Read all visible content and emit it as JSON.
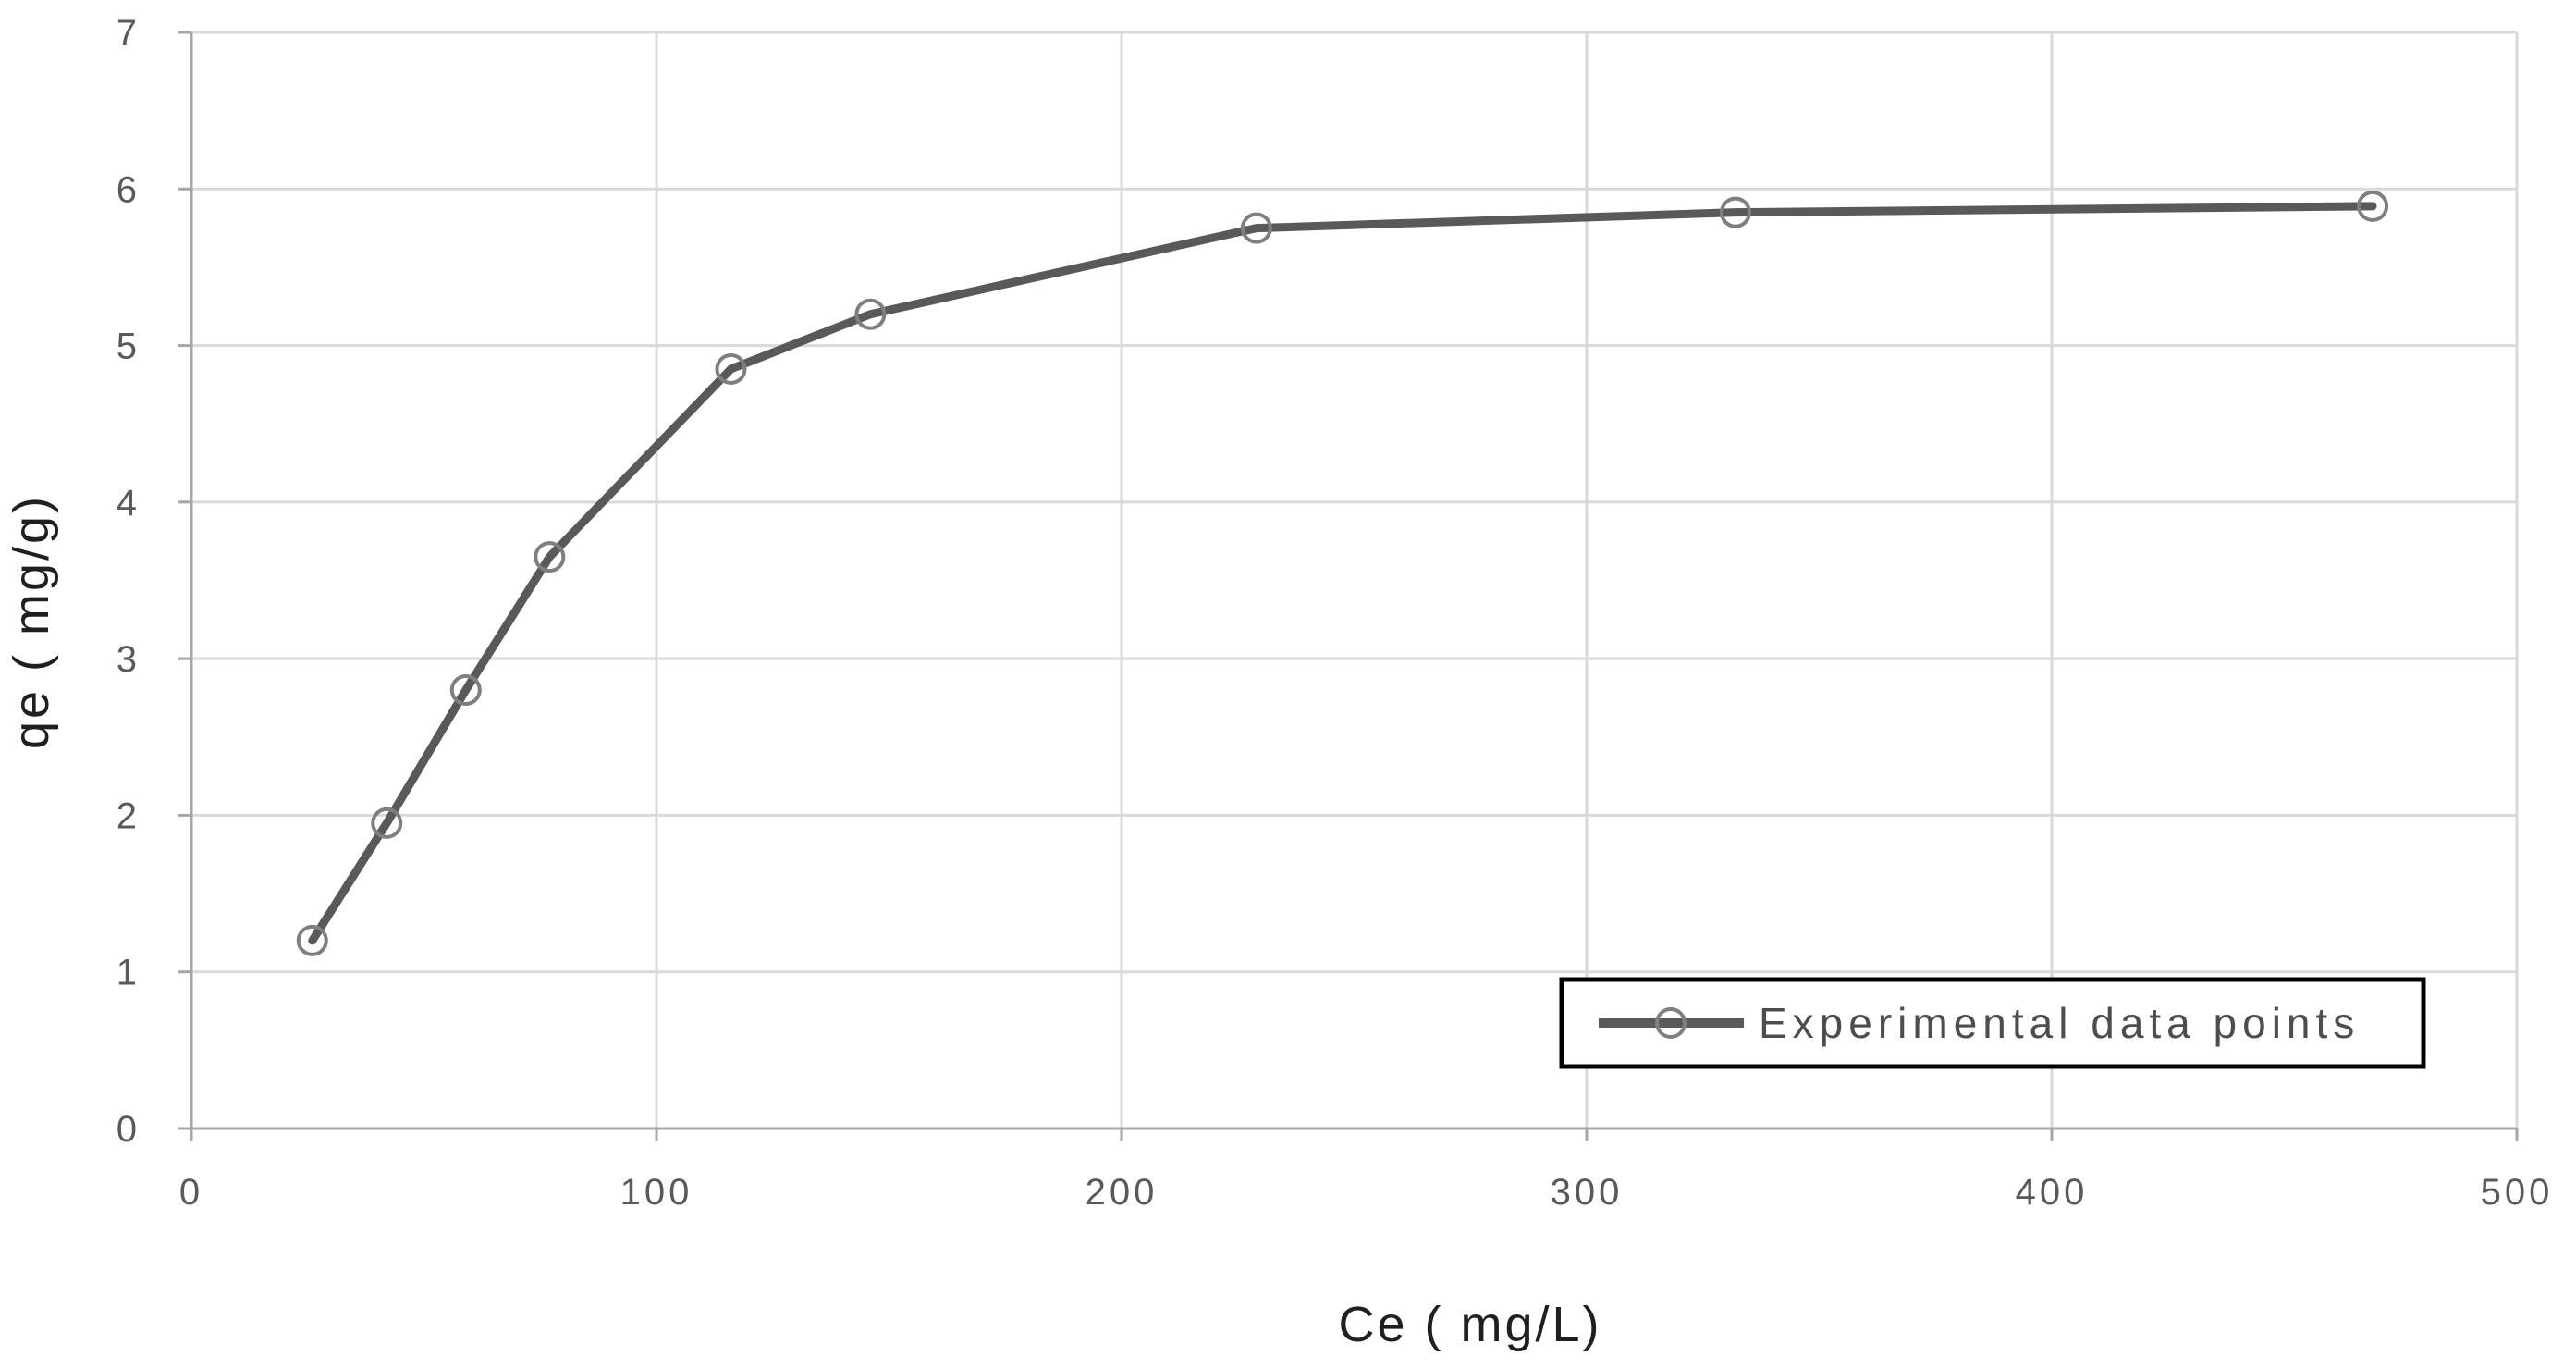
{
  "chart_data": {
    "type": "line",
    "title": "",
    "xlabel": "Ce ( mg/L)",
    "ylabel": "qe ( mg/g)",
    "xlim": [
      0,
      500
    ],
    "ylim": [
      0,
      7
    ],
    "xticks": [
      0,
      100,
      200,
      300,
      400,
      500
    ],
    "yticks": [
      0,
      1,
      2,
      3,
      4,
      5,
      6,
      7
    ],
    "grid": true,
    "legend": {
      "label": "Experimental data points",
      "position": "inside-bottom-right",
      "border_color": "#000000",
      "text_color": "#4d4d4d",
      "background": "#ffffff"
    },
    "series": [
      {
        "name": "Experimental data points",
        "x": [
          26,
          42,
          59,
          77,
          116,
          146,
          229,
          332,
          469
        ],
        "y": [
          1.2,
          1.95,
          2.8,
          3.65,
          4.85,
          5.2,
          5.75,
          5.85,
          5.89
        ],
        "line_color": "#595959",
        "line_width": 9,
        "marker": "circle-open",
        "marker_color": "#7f7f7f",
        "marker_radius": 15
      }
    ],
    "colors": {
      "gridline": "#d9d9d9",
      "axis_line": "#a6a6a6",
      "tick_label": "#595959",
      "axis_title": "#1f1f1f",
      "background": "#ffffff"
    }
  }
}
